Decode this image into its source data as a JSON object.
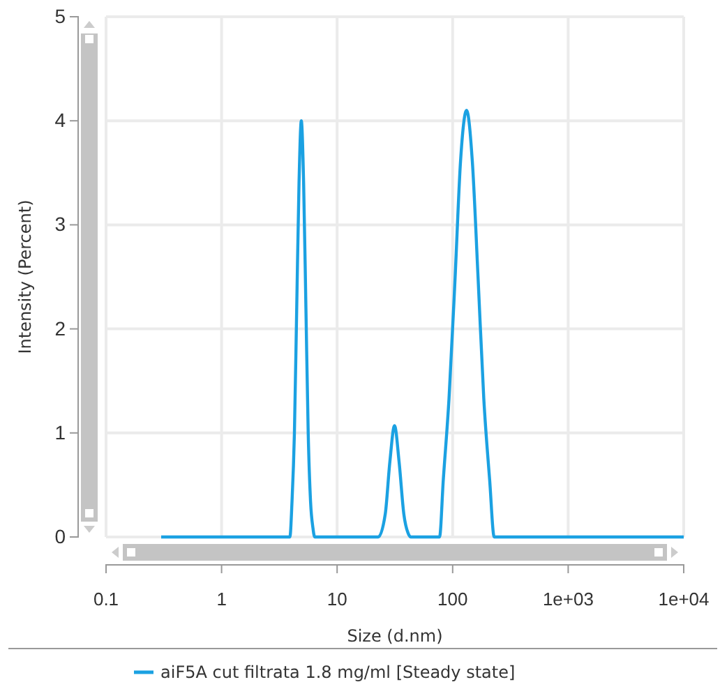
{
  "chart_data": {
    "type": "line",
    "xlabel": "Size (d.nm)",
    "ylabel": "Intensity (Percent)",
    "log": "x",
    "xlim": [
      0.1,
      10000
    ],
    "xticks": [
      0.1,
      1,
      10,
      100,
      {
        "value": 1000,
        "label": "1e+03"
      },
      {
        "value": 10000,
        "label": "1e+04"
      }
    ],
    "ylim": [
      0,
      5
    ],
    "yticks": [
      0,
      1,
      2,
      3,
      4,
      5
    ],
    "grid": true,
    "legend": "bottom",
    "marker": "none",
    "line_style": "solid",
    "series": [
      {
        "name": "aiF5A cut filtrata 1.8 mg/ml [Steady state]",
        "color": "#1ba1e2",
        "x": [
          0.3,
          3.9,
          4.07,
          4.27,
          4.47,
          4.68,
          4.9,
          5.13,
          5.37,
          5.62,
          5.89,
          6.17,
          6.4,
          22.7,
          26.1,
          28.6,
          31.4,
          34.4,
          37.8,
          41.4,
          43.5,
          77,
          83,
          93,
          105,
          117,
          132,
          148,
          166,
          186,
          209,
          229,
          10000
        ],
        "values": [
          0,
          0,
          0.34,
          1.0,
          2.2,
          3.4,
          4.0,
          3.4,
          2.2,
          1.0,
          0.34,
          0.09,
          0,
          0,
          0.22,
          0.72,
          1.07,
          0.72,
          0.22,
          0.03,
          0,
          0,
          0.55,
          1.33,
          2.49,
          3.61,
          4.1,
          3.61,
          2.49,
          1.33,
          0.55,
          0,
          0
        ]
      }
    ]
  }
}
